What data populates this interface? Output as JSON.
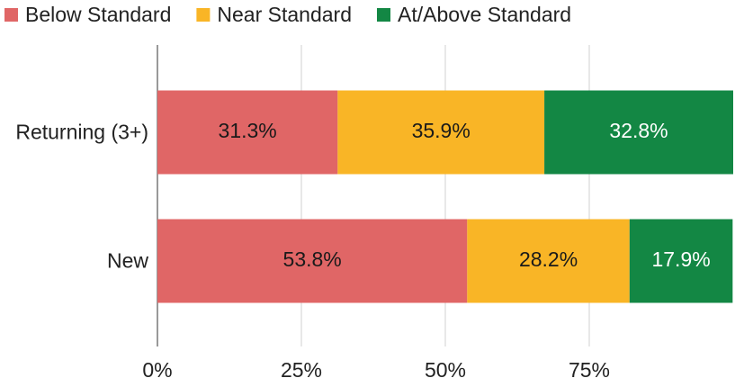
{
  "chart_data": {
    "type": "stacked-bar-horizontal",
    "categories": [
      "Returning (3+)",
      "New"
    ],
    "series": [
      {
        "name": "Below Standard",
        "color": "#e06666",
        "values": [
          31.3,
          53.8
        ],
        "value_labels": [
          "31.3%",
          "53.8%"
        ],
        "label_color": "#1a1a1a"
      },
      {
        "name": "Near Standard",
        "color": "#f9b526",
        "values": [
          35.9,
          28.2
        ],
        "value_labels": [
          "35.9%",
          "28.2%"
        ],
        "label_color": "#1a1a1a"
      },
      {
        "name": "At/Above Standard",
        "color": "#138744",
        "values": [
          32.8,
          17.9
        ],
        "value_labels": [
          "32.8%",
          "17.9%"
        ],
        "label_color": "#ffffff"
      }
    ],
    "xlim": [
      0,
      100
    ],
    "xticks": [
      {
        "value": 0,
        "label": "0%"
      },
      {
        "value": 25,
        "label": "25%"
      },
      {
        "value": 50,
        "label": "50%"
      },
      {
        "value": 75,
        "label": "75%"
      }
    ],
    "grid": true,
    "legend": "top"
  }
}
